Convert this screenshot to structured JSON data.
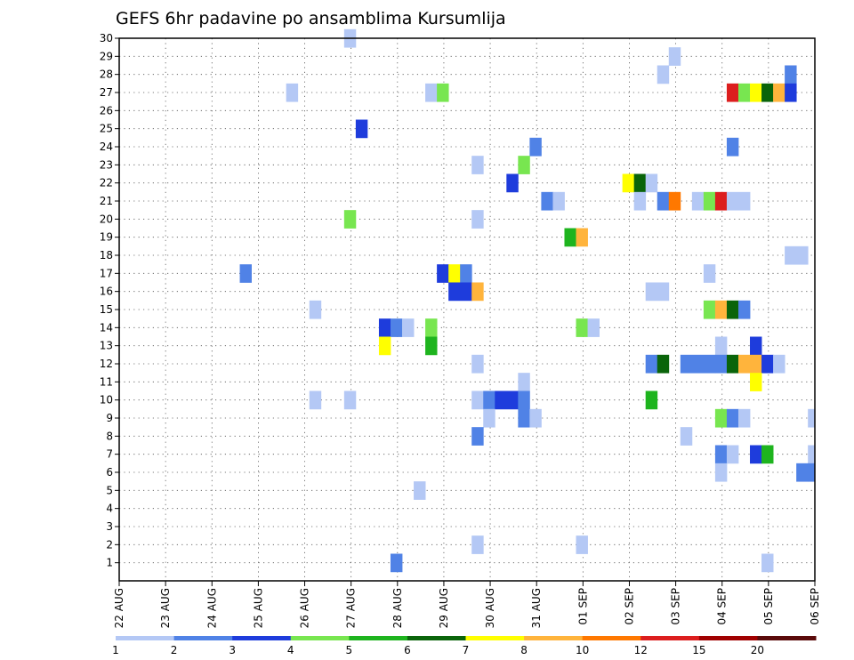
{
  "chart_data": {
    "type": "heatmap",
    "title": "GEFS 6hr padavine po ansamblima Kursumlija",
    "xlabel": "",
    "ylabel": "",
    "x_tick_labels": [
      "22 AUG",
      "23 AUG",
      "24 AUG",
      "25 AUG",
      "26 AUG",
      "27 AUG",
      "28 AUG",
      "29 AUG",
      "30 AUG",
      "31 AUG",
      "01 SEP",
      "02 SEP",
      "03 SEP",
      "04 SEP",
      "05 SEP",
      "06 SEP"
    ],
    "y_tick_labels": [
      "1",
      "2",
      "3",
      "4",
      "5",
      "6",
      "7",
      "8",
      "9",
      "10",
      "11",
      "12",
      "13",
      "14",
      "15",
      "16",
      "17",
      "18",
      "19",
      "20",
      "21",
      "22",
      "23",
      "24",
      "25",
      "26",
      "27",
      "28",
      "29",
      "30"
    ],
    "x_range_days": [
      0,
      15
    ],
    "y_range_members": [
      0,
      30
    ],
    "grid": true,
    "colorbar_levels": [
      "1",
      "2",
      "3",
      "4",
      "5",
      "6",
      "7",
      "8",
      "10",
      "12",
      "15",
      "20"
    ],
    "colors": [
      "#b4c8f5",
      "#5082e6",
      "#1e3cdc",
      "#78e650",
      "#1eb41e",
      "#0a640a",
      "#ffff00",
      "#ffb43c",
      "#ff7800",
      "#dc1e1e",
      "#a00000",
      "#5a0a0a"
    ],
    "cells_format": "[member, day_start, day_end, color_index]",
    "cells": [
      [
        30,
        4.85,
        5.1,
        0
      ],
      [
        29,
        11.85,
        12.1,
        0
      ],
      [
        28,
        11.6,
        11.85,
        0
      ],
      [
        28,
        14.35,
        14.6,
        1
      ],
      [
        27,
        3.6,
        3.85,
        0
      ],
      [
        27,
        6.6,
        6.85,
        0
      ],
      [
        27,
        6.85,
        7.1,
        3
      ],
      [
        27,
        13.1,
        13.35,
        9
      ],
      [
        27,
        13.35,
        13.6,
        3
      ],
      [
        27,
        13.6,
        13.85,
        6
      ],
      [
        27,
        13.85,
        14.1,
        5
      ],
      [
        27,
        14.1,
        14.35,
        7
      ],
      [
        27,
        14.35,
        14.6,
        2
      ],
      [
        25,
        5.1,
        5.35,
        2
      ],
      [
        24,
        8.85,
        9.1,
        1
      ],
      [
        24,
        13.1,
        13.35,
        1
      ],
      [
        23,
        7.6,
        7.85,
        0
      ],
      [
        23,
        8.6,
        8.85,
        3
      ],
      [
        22,
        8.35,
        8.6,
        2
      ],
      [
        22,
        10.85,
        11.1,
        6
      ],
      [
        22,
        11.1,
        11.35,
        5
      ],
      [
        22,
        11.35,
        11.6,
        0
      ],
      [
        21,
        9.1,
        9.35,
        1
      ],
      [
        21,
        9.35,
        9.6,
        0
      ],
      [
        21,
        11.1,
        11.35,
        0
      ],
      [
        21,
        11.6,
        11.85,
        1
      ],
      [
        21,
        11.85,
        12.1,
        8
      ],
      [
        21,
        12.35,
        12.6,
        0
      ],
      [
        21,
        12.6,
        12.85,
        3
      ],
      [
        21,
        12.85,
        13.1,
        9
      ],
      [
        21,
        13.1,
        13.6,
        0
      ],
      [
        20,
        4.85,
        5.1,
        3
      ],
      [
        20,
        7.6,
        7.85,
        0
      ],
      [
        19,
        9.6,
        9.85,
        4
      ],
      [
        19,
        9.85,
        10.1,
        7
      ],
      [
        18,
        14.35,
        14.85,
        0
      ],
      [
        17,
        2.6,
        2.85,
        1
      ],
      [
        17,
        6.85,
        7.1,
        2
      ],
      [
        17,
        7.1,
        7.35,
        6
      ],
      [
        17,
        7.35,
        7.6,
        1
      ],
      [
        17,
        12.6,
        12.85,
        0
      ],
      [
        16,
        7.1,
        7.6,
        2
      ],
      [
        16,
        7.6,
        7.85,
        7
      ],
      [
        16,
        11.35,
        11.85,
        0
      ],
      [
        15,
        4.1,
        4.35,
        0
      ],
      [
        15,
        12.6,
        12.85,
        3
      ],
      [
        15,
        12.85,
        13.1,
        7
      ],
      [
        15,
        13.1,
        13.35,
        5
      ],
      [
        15,
        13.35,
        13.6,
        1
      ],
      [
        14,
        5.6,
        5.85,
        2
      ],
      [
        14,
        5.85,
        6.1,
        1
      ],
      [
        14,
        6.1,
        6.35,
        0
      ],
      [
        14,
        6.6,
        6.85,
        3
      ],
      [
        14,
        9.85,
        10.1,
        3
      ],
      [
        14,
        10.1,
        10.35,
        0
      ],
      [
        13,
        5.6,
        5.85,
        6
      ],
      [
        13,
        6.6,
        6.85,
        4
      ],
      [
        13,
        12.85,
        13.1,
        0
      ],
      [
        13,
        13.6,
        13.85,
        2
      ],
      [
        12,
        7.6,
        7.85,
        0
      ],
      [
        12,
        11.35,
        11.6,
        1
      ],
      [
        12,
        11.6,
        11.85,
        5
      ],
      [
        12,
        12.1,
        12.85,
        1
      ],
      [
        12,
        12.85,
        13.1,
        1
      ],
      [
        12,
        13.1,
        13.35,
        5
      ],
      [
        12,
        13.35,
        13.85,
        7
      ],
      [
        12,
        13.85,
        14.1,
        2
      ],
      [
        12,
        14.1,
        14.35,
        0
      ],
      [
        11,
        8.6,
        8.85,
        0
      ],
      [
        11,
        13.6,
        13.85,
        6
      ],
      [
        10,
        4.1,
        4.35,
        0
      ],
      [
        10,
        4.85,
        5.1,
        0
      ],
      [
        10,
        7.6,
        7.85,
        0
      ],
      [
        10,
        7.85,
        8.1,
        1
      ],
      [
        10,
        8.1,
        8.6,
        2
      ],
      [
        10,
        8.6,
        8.85,
        1
      ],
      [
        10,
        11.35,
        11.6,
        4
      ],
      [
        9,
        7.85,
        8.1,
        0
      ],
      [
        9,
        8.6,
        8.85,
        1
      ],
      [
        9,
        8.85,
        9.1,
        0
      ],
      [
        9,
        12.85,
        13.1,
        3
      ],
      [
        9,
        13.1,
        13.35,
        1
      ],
      [
        9,
        13.35,
        13.6,
        0
      ],
      [
        9,
        14.85,
        15.0,
        0
      ],
      [
        8,
        7.6,
        7.85,
        1
      ],
      [
        8,
        12.1,
        12.35,
        0
      ],
      [
        7,
        12.85,
        13.1,
        1
      ],
      [
        7,
        13.1,
        13.35,
        0
      ],
      [
        7,
        13.6,
        13.85,
        2
      ],
      [
        7,
        13.85,
        14.1,
        4
      ],
      [
        7,
        14.85,
        15.0,
        0
      ],
      [
        6,
        12.85,
        13.1,
        0
      ],
      [
        6,
        14.6,
        14.85,
        1
      ],
      [
        6,
        14.85,
        15.0,
        1
      ],
      [
        5,
        6.35,
        6.6,
        0
      ],
      [
        2,
        7.6,
        7.85,
        0
      ],
      [
        2,
        9.85,
        10.1,
        0
      ],
      [
        1,
        5.85,
        6.1,
        1
      ],
      [
        1,
        13.85,
        14.1,
        0
      ]
    ]
  }
}
